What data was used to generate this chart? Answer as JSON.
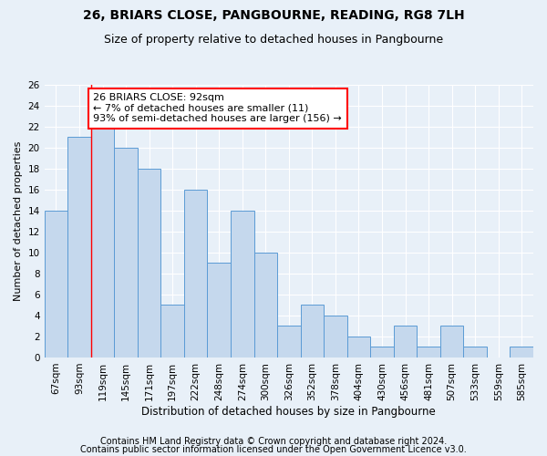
{
  "title1": "26, BRIARS CLOSE, PANGBOURNE, READING, RG8 7LH",
  "title2": "Size of property relative to detached houses in Pangbourne",
  "xlabel": "Distribution of detached houses by size in Pangbourne",
  "ylabel": "Number of detached properties",
  "categories": [
    "67sqm",
    "93sqm",
    "119sqm",
    "145sqm",
    "171sqm",
    "197sqm",
    "222sqm",
    "248sqm",
    "274sqm",
    "300sqm",
    "326sqm",
    "352sqm",
    "378sqm",
    "404sqm",
    "430sqm",
    "456sqm",
    "481sqm",
    "507sqm",
    "533sqm",
    "559sqm",
    "585sqm"
  ],
  "values": [
    14,
    21,
    22,
    20,
    18,
    5,
    16,
    9,
    14,
    10,
    3,
    5,
    4,
    2,
    1,
    3,
    1,
    3,
    1,
    0,
    1
  ],
  "bar_color": "#c5d8ed",
  "bar_edge_color": "#5b9bd5",
  "annotation_box_text": "26 BRIARS CLOSE: 92sqm\n← 7% of detached houses are smaller (11)\n93% of semi-detached houses are larger (156) →",
  "annotation_box_color": "white",
  "annotation_box_edge_color": "red",
  "vline_color": "red",
  "vline_x": 1.5,
  "ylim": [
    0,
    26
  ],
  "yticks": [
    0,
    2,
    4,
    6,
    8,
    10,
    12,
    14,
    16,
    18,
    20,
    22,
    24,
    26
  ],
  "footer1": "Contains HM Land Registry data © Crown copyright and database right 2024.",
  "footer2": "Contains public sector information licensed under the Open Government Licence v3.0.",
  "bg_color": "#e8f0f8",
  "plot_bg_color": "#e8f0f8",
  "grid_color": "#ffffff",
  "title1_fontsize": 10,
  "title2_fontsize": 9,
  "xlabel_fontsize": 8.5,
  "ylabel_fontsize": 8,
  "tick_fontsize": 7.5,
  "footer_fontsize": 7,
  "annot_fontsize": 8
}
